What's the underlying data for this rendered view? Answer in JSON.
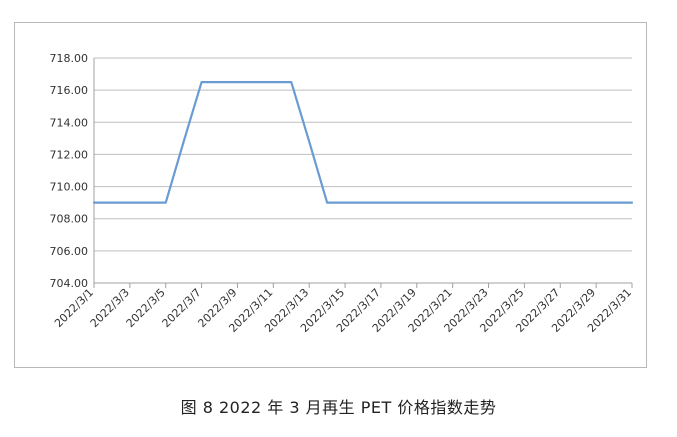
{
  "caption": "图 8  2022 年 3 月再生 PET 价格指数走势",
  "colors": {
    "line": "#6a9bd2",
    "grid": "#bfbfbf",
    "axis": "#a0a0a0"
  },
  "chart_data": {
    "type": "line",
    "title": "",
    "xlabel": "",
    "ylabel": "",
    "ylim": [
      704,
      718
    ],
    "y_ticks": [
      "704.00",
      "706.00",
      "708.00",
      "710.00",
      "712.00",
      "714.00",
      "716.00",
      "718.00"
    ],
    "grid": true,
    "legend": "none",
    "x_tick_labels": [
      "2022/3/1",
      "2022/3/3",
      "2022/3/5",
      "2022/3/7",
      "2022/3/9",
      "2022/3/11",
      "2022/3/13",
      "2022/3/15",
      "2022/3/17",
      "2022/3/19",
      "2022/3/21",
      "2022/3/23",
      "2022/3/25",
      "2022/3/27",
      "2022/3/29",
      "2022/3/31"
    ],
    "x": [
      "2022/3/1",
      "2022/3/2",
      "2022/3/3",
      "2022/3/4",
      "2022/3/5",
      "2022/3/6",
      "2022/3/7",
      "2022/3/8",
      "2022/3/9",
      "2022/3/10",
      "2022/3/11",
      "2022/3/12",
      "2022/3/13",
      "2022/3/14",
      "2022/3/15",
      "2022/3/16",
      "2022/3/17",
      "2022/3/18",
      "2022/3/19",
      "2022/3/20",
      "2022/3/21",
      "2022/3/22",
      "2022/3/23",
      "2022/3/24",
      "2022/3/25",
      "2022/3/26",
      "2022/3/27",
      "2022/3/28",
      "2022/3/29",
      "2022/3/30",
      "2022/3/31"
    ],
    "series": [
      {
        "values": [
          709,
          709,
          709,
          709,
          709,
          712.8,
          716.5,
          716.5,
          716.5,
          716.5,
          716.5,
          716.5,
          712.8,
          709,
          709,
          709,
          709,
          709,
          709,
          709,
          709,
          709,
          709,
          709,
          709,
          709,
          709,
          709,
          709,
          709,
          709
        ]
      }
    ]
  }
}
